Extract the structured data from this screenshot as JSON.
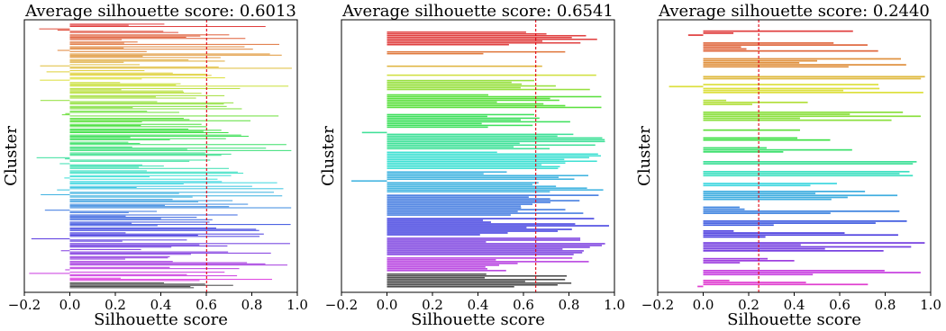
{
  "chart_data": [
    {
      "type": "bar",
      "orientation": "horizontal",
      "title": "Average silhouette score: 0.6013",
      "xlabel": "Silhouette score",
      "ylabel": "Cluster",
      "xlim": [
        -0.2,
        1.0
      ],
      "xticks": [
        "−0.2",
        "0.0",
        "0.2",
        "0.4",
        "0.6",
        "0.8",
        "1.0"
      ],
      "average_line": 0.6013,
      "grid": false,
      "seed": 11,
      "hue_start": 0.0,
      "hue_end": 0.85,
      "group_bar_counts": [
        3,
        4,
        5,
        3,
        5,
        4,
        3,
        4,
        5,
        3,
        4,
        5,
        3,
        4,
        3,
        5,
        4,
        3,
        4,
        5,
        3,
        4,
        3,
        4,
        5,
        3,
        4,
        3,
        4,
        5,
        3,
        4,
        3,
        5,
        4,
        3,
        4,
        3,
        4,
        5,
        3,
        4,
        3,
        4,
        3,
        5
      ],
      "group_gaps": [
        1,
        1,
        1,
        1,
        1,
        1,
        1,
        1,
        1,
        1,
        1,
        1,
        1,
        1,
        1,
        1,
        1,
        1,
        1,
        1,
        1,
        1,
        1,
        1,
        1,
        1,
        1,
        1,
        1,
        1,
        1,
        1,
        1,
        1,
        1,
        1,
        1,
        1,
        1,
        1,
        1,
        1,
        1,
        1,
        1,
        1
      ],
      "value_range": [
        0.2,
        0.98
      ],
      "negative_chance": 0.12
    },
    {
      "type": "bar",
      "orientation": "horizontal",
      "title": "Average silhouette score: 0.6541",
      "xlabel": "Silhouette score",
      "ylabel": "Cluster",
      "xlim": [
        -0.2,
        1.0
      ],
      "xticks": [
        "−0.2",
        "0.0",
        "0.2",
        "0.4",
        "0.6",
        "0.8",
        "1.0"
      ],
      "average_line": 0.6541,
      "grid": false,
      "seed": 23,
      "hue_start": 0.0,
      "hue_end": 0.85,
      "group_bar_counts": [
        8,
        2,
        1,
        1,
        6,
        8,
        8,
        10,
        10,
        12,
        12,
        10,
        10,
        8,
        8
      ],
      "group_gaps": [
        5,
        3,
        6,
        4,
        2,
        2,
        3,
        2,
        1,
        1,
        1,
        1,
        1,
        1,
        1
      ],
      "value_range": [
        0.4,
        0.98
      ],
      "negative_chance": 0.03
    },
    {
      "type": "bar",
      "orientation": "horizontal",
      "title": "Average silhouette score: 0.2440",
      "xlabel": "Silhouette score",
      "ylabel": "Cluster",
      "xlim": [
        -0.2,
        1.0
      ],
      "xticks": [
        "−0.2",
        "0.0",
        "0.2",
        "0.4",
        "0.6",
        "0.8",
        "1.0"
      ],
      "average_line": 0.244,
      "grid": false,
      "seed": 37,
      "hue_start": 0.0,
      "hue_end": 0.85,
      "group_bar_counts": [
        3,
        5,
        5,
        2,
        5,
        3,
        5,
        1,
        2,
        3,
        2,
        3,
        2,
        5,
        4,
        3,
        4,
        5,
        3,
        3,
        4
      ],
      "group_gaps": [
        4,
        3,
        3,
        4,
        2,
        3,
        3,
        4,
        3,
        3,
        4,
        3,
        3,
        2,
        3,
        3,
        2,
        2,
        3,
        3,
        2
      ],
      "value_range": [
        0.1,
        0.98
      ],
      "negative_chance": 0.05
    }
  ]
}
